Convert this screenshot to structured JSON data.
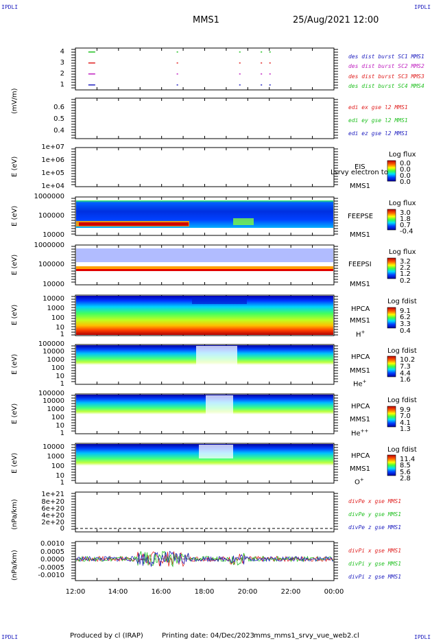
{
  "header": {
    "corner_tl": "IPDLI",
    "corner_tr": "IPDLI",
    "corner_bl": "IPDLI",
    "corner_br": "IPDLI",
    "spacecraft": "MMS1",
    "date": "25/Aug/2021 12:00"
  },
  "footer": {
    "produced": "Produced by cl (IRAP)",
    "printing": "Printing date: 04/Dec/2023",
    "file": "mms_mms1_srvy_vue_web2.cl"
  },
  "xaxis": {
    "ticks": [
      "12:00",
      "14:00",
      "16:00",
      "18:00",
      "20:00",
      "22:00",
      "00:00"
    ]
  },
  "panels": {
    "burst": {
      "yticks": [
        "4",
        "3",
        "2",
        "1"
      ],
      "legend": [
        {
          "text": "des dist burst SC1 MMS1",
          "color": "#2020c0"
        },
        {
          "text": "des dist burst SC2 MMS2",
          "color": "#c020c0"
        },
        {
          "text": "des dist burst SC3 MMS3",
          "color": "#e02020"
        },
        {
          "text": "des dist burst SC4 MMS4",
          "color": "#20c020"
        }
      ]
    },
    "edi": {
      "ylabel": "(mV/m)",
      "yticks": [
        "0.6",
        "0.5",
        "0.4"
      ],
      "legend": [
        {
          "text": "edi ex gse l2 MMS1",
          "color": "#e02020"
        },
        {
          "text": "edi ey gse l2 MMS1",
          "color": "#20c020"
        },
        {
          "text": "edi ez gse l2 MMS1",
          "color": "#2020c0"
        }
      ]
    },
    "eis": {
      "ylabel": "E (eV)",
      "yticks": [
        "1e+07",
        "1e+06",
        "1e+05",
        "1e+04"
      ],
      "label1": "EIS",
      "label2": "MMS1",
      "overlap": "Lsrvy electron to",
      "cbar_title": "Log flux",
      "cbar_values": [
        "0.0",
        "0.0",
        "0.0",
        "0.0"
      ]
    },
    "feepse": {
      "ylabel": "E (eV)",
      "yticks": [
        "1000000",
        "100000",
        "10000"
      ],
      "label1": "FEEPSE",
      "label2": "MMS1",
      "cbar_title": "Log flux",
      "cbar_values": [
        "3.0",
        "1.8",
        "0.7",
        "-0.4"
      ]
    },
    "feepsi": {
      "ylabel": "E (eV)",
      "yticks": [
        "1000000",
        "100000",
        "10000"
      ],
      "label1": "FEEPSI",
      "label2": "MMS1",
      "cbar_title": "Log flux",
      "cbar_values": [
        "3.2",
        "2.2",
        "1.2",
        "0.2"
      ]
    },
    "hpca_h": {
      "ylabel": "E (eV)",
      "yticks": [
        "10000",
        "1000",
        "100",
        "10",
        "1"
      ],
      "label1": "HPCA",
      "label2": "MMS1",
      "species": "H",
      "charge": "+",
      "cbar_title": "Log fdist",
      "cbar_values": [
        "9.1",
        "6.2",
        "3.3",
        "0.4"
      ]
    },
    "hpca_he": {
      "ylabel": "E (eV)",
      "yticks": [
        "100000",
        "10000",
        "1000",
        "100",
        "10",
        "1"
      ],
      "label1": "HPCA",
      "label2": "MMS1",
      "species": "He",
      "charge": "+",
      "cbar_title": "Log fdist",
      "cbar_values": [
        "10.2",
        "7.3",
        "4.4",
        "1.6"
      ]
    },
    "hpca_hepp": {
      "ylabel": "E (eV)",
      "yticks": [
        "100000",
        "10000",
        "1000",
        "100",
        "10",
        "1"
      ],
      "label1": "HPCA",
      "label2": "MMS1",
      "species": "He",
      "charge": "++",
      "cbar_title": "Log fdist",
      "cbar_values": [
        "9.9",
        "7.0",
        "4.1",
        "1.3"
      ]
    },
    "hpca_o": {
      "ylabel": "E (eV)",
      "yticks": [
        "10000",
        "1000",
        "100",
        "10",
        "1"
      ],
      "label1": "HPCA",
      "label2": "MMS1",
      "species": "O",
      "charge": "+",
      "cbar_title": "Log fdist",
      "cbar_values": [
        "11.4",
        "8.5",
        "5.6",
        "2.8"
      ]
    },
    "divpe": {
      "ylabel": "(nPa/km)",
      "yticks": [
        "1e+21",
        "8e+20",
        "6e+20",
        "4e+20",
        "2e+20",
        "0"
      ],
      "legend": [
        {
          "text": "divPe x gse MMS1",
          "color": "#e02020"
        },
        {
          "text": "divPe y gse MMS1",
          "color": "#20c020"
        },
        {
          "text": "divPe z gse MMS1",
          "color": "#2020c0"
        }
      ]
    },
    "divpi": {
      "ylabel": "(nPa/km)",
      "yticks": [
        "0.0010",
        "0.0005",
        "0.0000",
        "-0.0005",
        "-0.0010"
      ],
      "legend": [
        {
          "text": "divPi x gse MMS1",
          "color": "#e02020"
        },
        {
          "text": "divPi y gse MMS1",
          "color": "#20c020"
        },
        {
          "text": "divPi z gse MMS1",
          "color": "#2020c0"
        }
      ]
    }
  },
  "chart_data": {
    "type": "heatmap",
    "x_range": [
      "12:00",
      "00:00"
    ],
    "burst_marks_hours": [
      12.6,
      16.7,
      19.6,
      20.6,
      21.0
    ],
    "divpi_ylim": [
      -0.0015,
      0.0012
    ]
  }
}
